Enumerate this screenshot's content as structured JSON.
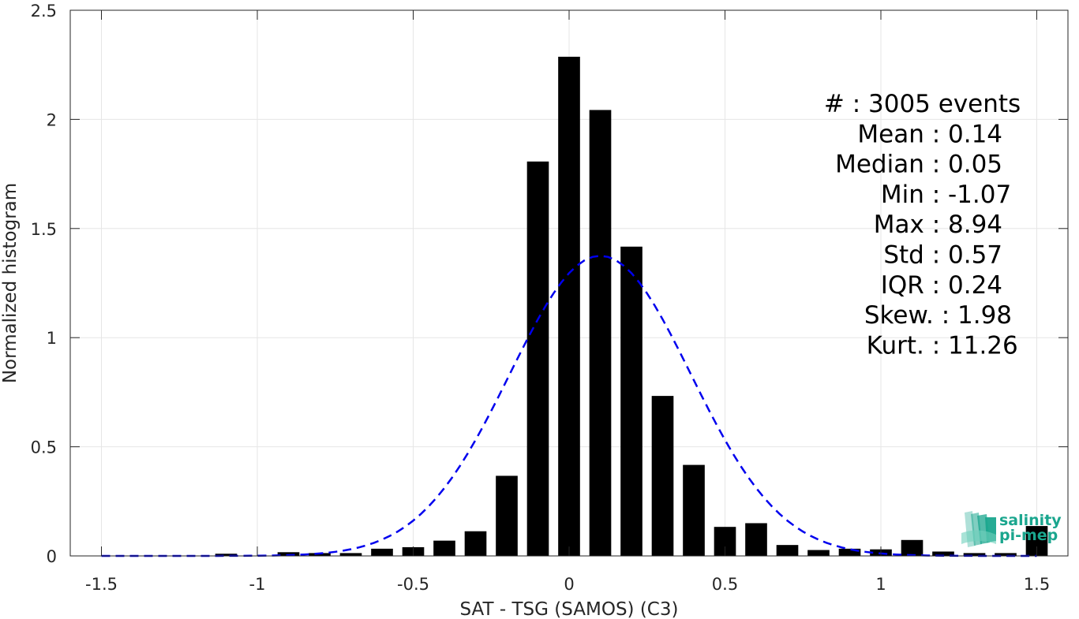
{
  "chart_data": {
    "type": "bar",
    "xlabel": "SAT - TSG (SAMOS) (C3)",
    "ylabel": "Normalized histogram",
    "xlim": [
      -1.6,
      1.6
    ],
    "ylim": [
      0,
      2.5
    ],
    "grid": true,
    "xticks": [
      -1.5,
      -1,
      -0.5,
      0,
      0.5,
      1,
      1.5
    ],
    "xtick_labels": [
      "-1.5",
      "-1",
      "-0.5",
      "0",
      "0.5",
      "1",
      "1.5"
    ],
    "yticks": [
      0,
      0.5,
      1,
      1.5,
      2,
      2.5
    ],
    "ytick_labels": [
      "0",
      "0.5",
      "1",
      "1.5",
      "2",
      "2.5"
    ],
    "bar_width": 0.07,
    "bar_color": "#000000",
    "bins": [
      -1.5,
      -1.4,
      -1.3,
      -1.2,
      -1.1,
      -1.0,
      -0.9,
      -0.8,
      -0.7,
      -0.6,
      -0.5,
      -0.4,
      -0.3,
      -0.2,
      -0.1,
      0.0,
      0.1,
      0.2,
      0.3,
      0.4,
      0.5,
      0.6,
      0.7,
      0.8,
      0.9,
      1.0,
      1.1,
      1.2,
      1.3,
      1.4,
      1.5
    ],
    "values": [
      0,
      0,
      0,
      0,
      0.01,
      0,
      0.017,
      0.013,
      0.013,
      0.033,
      0.04,
      0.07,
      0.113,
      0.367,
      1.807,
      2.287,
      2.043,
      1.417,
      0.733,
      0.417,
      0.133,
      0.15,
      0.05,
      0.027,
      0.033,
      0.03,
      0.073,
      0.02,
      0.013,
      0.013,
      0.137
    ],
    "fit_curve": {
      "style": "dashed",
      "color": "#0000ee",
      "mean": 0.1,
      "std": 0.29,
      "peak": 1.375,
      "x_range": [
        -1.5,
        1.5
      ]
    },
    "stats": [
      {
        "label": "#  ",
        "value": "3005 events"
      },
      {
        "label": "Mean",
        "value": "0.14"
      },
      {
        "label": "Median",
        "value": "0.05"
      },
      {
        "label": "Min",
        "value": "-1.07"
      },
      {
        "label": "Max",
        "value": "8.94"
      },
      {
        "label": "Std",
        "value": "0.57"
      },
      {
        "label": "IQR",
        "value": "0.24"
      },
      {
        "label": "Skew.",
        "value": "1.98"
      },
      {
        "label": "Kurt.",
        "value": "11.26"
      }
    ]
  },
  "logo": {
    "line1": "salinity",
    "line2": "pi-mep",
    "color": "#1aa68e"
  }
}
